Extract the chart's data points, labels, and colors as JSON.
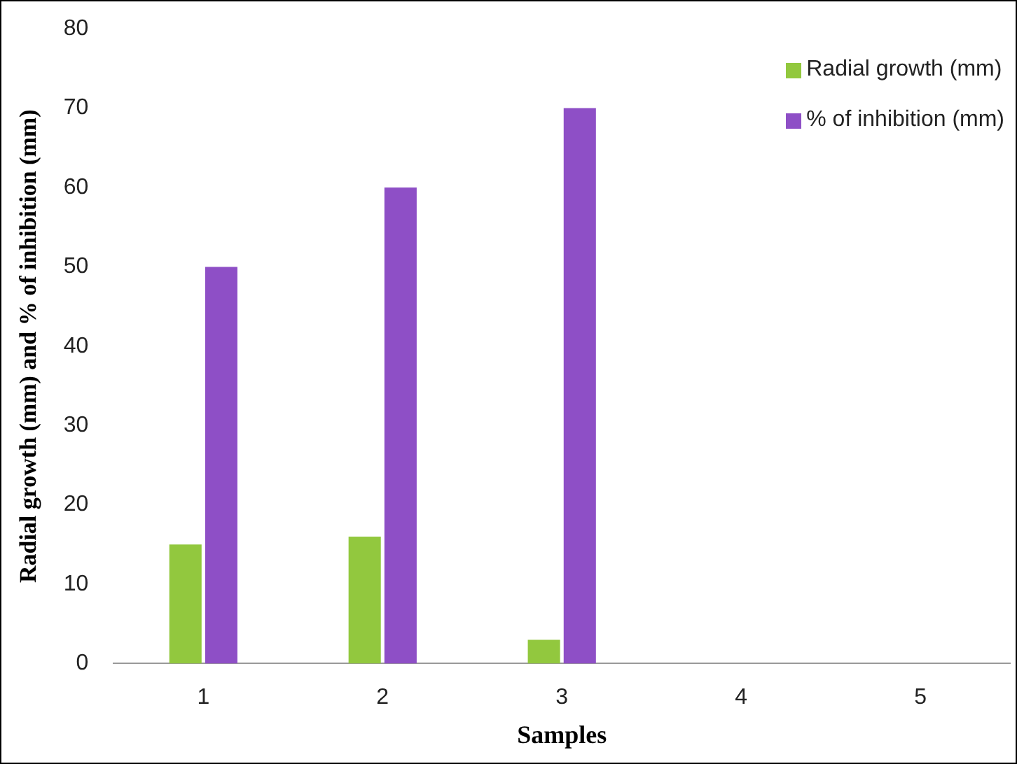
{
  "chart_data": {
    "type": "bar",
    "xlabel": "Samples",
    "ylabel": "Radial growth (mm) and % of inhibition (mm)",
    "categories": [
      "1",
      "2",
      "3",
      "4",
      "5"
    ],
    "series": [
      {
        "name": "Radial growth (mm)",
        "color": "#92c83e",
        "values": [
          15,
          16,
          3,
          null,
          null
        ]
      },
      {
        "name": "% of inhibition (mm)",
        "color": "#8e4fc6",
        "values": [
          50,
          60,
          70,
          null,
          null
        ]
      }
    ],
    "ylim": [
      0,
      80
    ],
    "yticks": [
      0,
      10,
      20,
      30,
      40,
      50,
      60,
      70,
      80
    ],
    "grid": false,
    "legend": "top right"
  }
}
